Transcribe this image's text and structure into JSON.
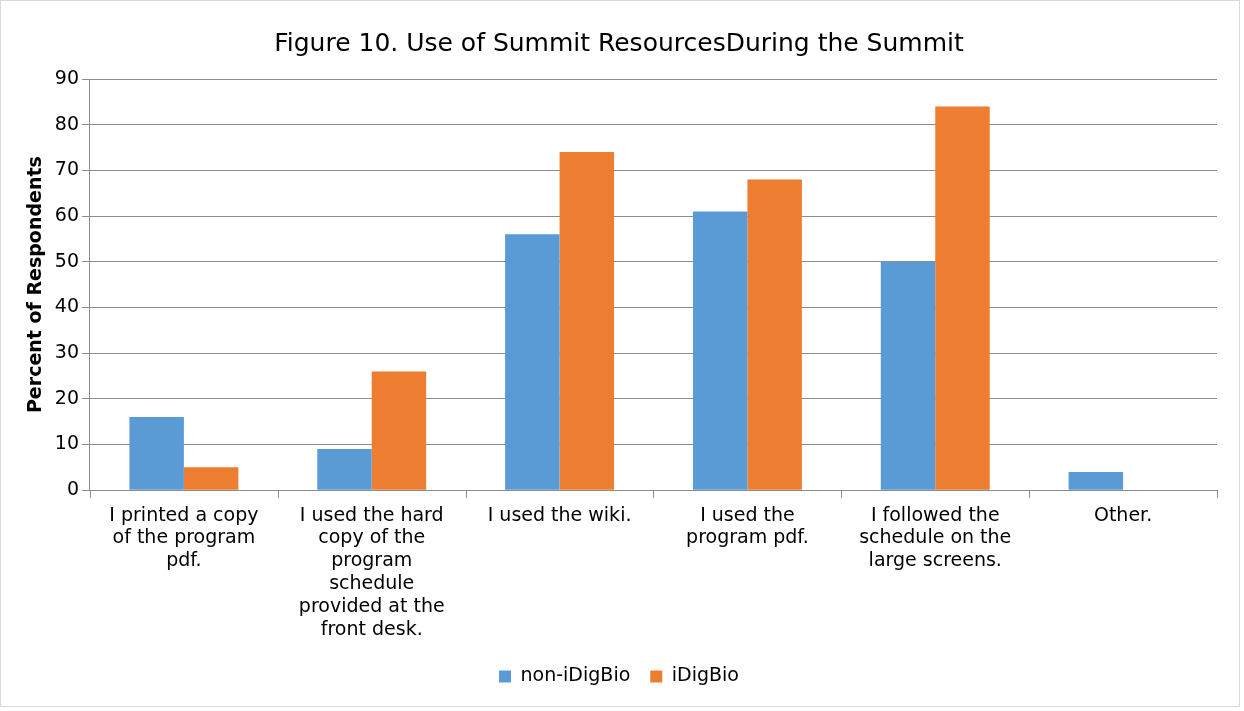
{
  "chart_data": {
    "type": "bar",
    "title": "Figure 10. Use of Summit ResourcesDuring the Summit",
    "ylabel": "Percent of Respondents",
    "categories": [
      "I printed a copy of the program pdf.",
      "I used the hard copy of the program schedule provided at the front desk.",
      "I used the wiki.",
      "I used the program pdf.",
      "I followed the schedule on the large screens.",
      "Other."
    ],
    "series": [
      {
        "name": "non-iDigBio",
        "color": "#5b9bd5",
        "values": [
          16,
          9,
          56,
          61,
          50,
          4
        ]
      },
      {
        "name": "iDigBio",
        "color": "#ed7d31",
        "values": [
          5,
          26,
          74,
          68,
          84,
          0
        ]
      }
    ],
    "ylim": [
      0,
      90
    ],
    "yticks": [
      0,
      10,
      20,
      30,
      40,
      50,
      60,
      70,
      80,
      90
    ],
    "grid": "y",
    "legend": "bottom"
  }
}
